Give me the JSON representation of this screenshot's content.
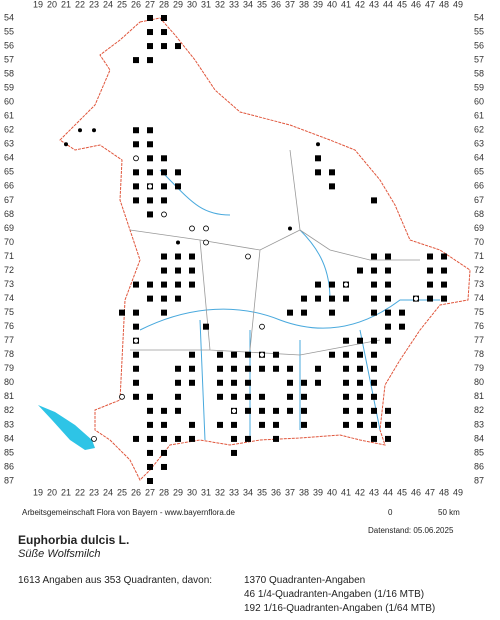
{
  "grid": {
    "columns": [
      19,
      20,
      21,
      22,
      23,
      24,
      25,
      26,
      27,
      28,
      29,
      30,
      31,
      32,
      33,
      34,
      35,
      36,
      37,
      38,
      39,
      40,
      41,
      42,
      43,
      44,
      45,
      46,
      47,
      48,
      49
    ],
    "rows": [
      54,
      55,
      56,
      57,
      58,
      59,
      60,
      61,
      62,
      63,
      64,
      65,
      66,
      67,
      68,
      69,
      70,
      71,
      72,
      73,
      74,
      75,
      76,
      77,
      78,
      79,
      80,
      81,
      82,
      83,
      84,
      85,
      86,
      87
    ]
  },
  "records": {
    "squares": [
      [
        27,
        54
      ],
      [
        28,
        54
      ],
      [
        27,
        55
      ],
      [
        28,
        55
      ],
      [
        27,
        56
      ],
      [
        28,
        56
      ],
      [
        29,
        56
      ],
      [
        26,
        57
      ],
      [
        27,
        57
      ],
      [
        26,
        62
      ],
      [
        27,
        62
      ],
      [
        26,
        63
      ],
      [
        27,
        63
      ],
      [
        27,
        64
      ],
      [
        28,
        64
      ],
      [
        39,
        64
      ],
      [
        26,
        65
      ],
      [
        27,
        65
      ],
      [
        28,
        65
      ],
      [
        29,
        65
      ],
      [
        39,
        65
      ],
      [
        40,
        65
      ],
      [
        26,
        66
      ],
      [
        27,
        66
      ],
      [
        28,
        66
      ],
      [
        29,
        66
      ],
      [
        40,
        66
      ],
      [
        26,
        67
      ],
      [
        27,
        67
      ],
      [
        28,
        67
      ],
      [
        43,
        67
      ],
      [
        27,
        68
      ],
      [
        28,
        71
      ],
      [
        29,
        71
      ],
      [
        30,
        71
      ],
      [
        43,
        71
      ],
      [
        44,
        71
      ],
      [
        47,
        71
      ],
      [
        48,
        71
      ],
      [
        28,
        72
      ],
      [
        29,
        72
      ],
      [
        30,
        72
      ],
      [
        42,
        72
      ],
      [
        43,
        72
      ],
      [
        44,
        72
      ],
      [
        47,
        72
      ],
      [
        48,
        72
      ],
      [
        26,
        73
      ],
      [
        27,
        73
      ],
      [
        28,
        73
      ],
      [
        29,
        73
      ],
      [
        30,
        73
      ],
      [
        39,
        73
      ],
      [
        40,
        73
      ],
      [
        41,
        73
      ],
      [
        43,
        73
      ],
      [
        44,
        73
      ],
      [
        47,
        73
      ],
      [
        48,
        73
      ],
      [
        27,
        74
      ],
      [
        28,
        74
      ],
      [
        29,
        74
      ],
      [
        38,
        74
      ],
      [
        39,
        74
      ],
      [
        40,
        74
      ],
      [
        41,
        74
      ],
      [
        43,
        74
      ],
      [
        44,
        74
      ],
      [
        46,
        74
      ],
      [
        47,
        74
      ],
      [
        48,
        74
      ],
      [
        25,
        75
      ],
      [
        26,
        75
      ],
      [
        28,
        75
      ],
      [
        37,
        75
      ],
      [
        38,
        75
      ],
      [
        40,
        75
      ],
      [
        43,
        75
      ],
      [
        44,
        75
      ],
      [
        45,
        75
      ],
      [
        26,
        76
      ],
      [
        31,
        76
      ],
      [
        44,
        76
      ],
      [
        45,
        76
      ],
      [
        26,
        77
      ],
      [
        41,
        77
      ],
      [
        42,
        77
      ],
      [
        43,
        77
      ],
      [
        44,
        77
      ],
      [
        26,
        78
      ],
      [
        30,
        78
      ],
      [
        32,
        78
      ],
      [
        33,
        78
      ],
      [
        34,
        78
      ],
      [
        35,
        78
      ],
      [
        36,
        78
      ],
      [
        40,
        78
      ],
      [
        41,
        78
      ],
      [
        42,
        78
      ],
      [
        43,
        78
      ],
      [
        26,
        79
      ],
      [
        29,
        79
      ],
      [
        30,
        79
      ],
      [
        32,
        79
      ],
      [
        33,
        79
      ],
      [
        34,
        79
      ],
      [
        35,
        79
      ],
      [
        36,
        79
      ],
      [
        37,
        79
      ],
      [
        39,
        79
      ],
      [
        41,
        79
      ],
      [
        42,
        79
      ],
      [
        43,
        79
      ],
      [
        26,
        80
      ],
      [
        29,
        80
      ],
      [
        30,
        80
      ],
      [
        32,
        80
      ],
      [
        33,
        80
      ],
      [
        34,
        80
      ],
      [
        37,
        80
      ],
      [
        38,
        80
      ],
      [
        39,
        80
      ],
      [
        41,
        80
      ],
      [
        42,
        80
      ],
      [
        43,
        80
      ],
      [
        26,
        81
      ],
      [
        27,
        81
      ],
      [
        29,
        81
      ],
      [
        32,
        81
      ],
      [
        33,
        81
      ],
      [
        34,
        81
      ],
      [
        35,
        81
      ],
      [
        37,
        81
      ],
      [
        38,
        81
      ],
      [
        41,
        81
      ],
      [
        42,
        81
      ],
      [
        43,
        81
      ],
      [
        27,
        82
      ],
      [
        28,
        82
      ],
      [
        29,
        82
      ],
      [
        33,
        82
      ],
      [
        34,
        82
      ],
      [
        35,
        82
      ],
      [
        36,
        82
      ],
      [
        37,
        82
      ],
      [
        38,
        82
      ],
      [
        41,
        82
      ],
      [
        42,
        82
      ],
      [
        43,
        82
      ],
      [
        44,
        82
      ],
      [
        27,
        83
      ],
      [
        28,
        83
      ],
      [
        30,
        83
      ],
      [
        32,
        83
      ],
      [
        33,
        83
      ],
      [
        35,
        83
      ],
      [
        36,
        83
      ],
      [
        38,
        83
      ],
      [
        41,
        83
      ],
      [
        42,
        83
      ],
      [
        43,
        83
      ],
      [
        44,
        83
      ],
      [
        26,
        84
      ],
      [
        27,
        84
      ],
      [
        28,
        84
      ],
      [
        29,
        84
      ],
      [
        30,
        84
      ],
      [
        33,
        84
      ],
      [
        34,
        84
      ],
      [
        36,
        84
      ],
      [
        43,
        84
      ],
      [
        44,
        84
      ],
      [
        27,
        85
      ],
      [
        28,
        85
      ],
      [
        33,
        85
      ],
      [
        27,
        86
      ],
      [
        28,
        86
      ],
      [
        27,
        87
      ]
    ],
    "circles": [
      [
        26,
        64
      ],
      [
        27,
        66
      ],
      [
        28,
        68
      ],
      [
        30,
        69
      ],
      [
        31,
        69
      ],
      [
        31,
        70
      ],
      [
        34,
        71
      ],
      [
        41,
        73
      ],
      [
        46,
        74
      ],
      [
        26,
        77
      ],
      [
        35,
        76
      ],
      [
        35,
        78
      ],
      [
        23,
        84
      ],
      [
        25,
        81
      ],
      [
        33,
        82
      ]
    ],
    "dots": [
      [
        21,
        63
      ],
      [
        22,
        62
      ],
      [
        23,
        62
      ],
      [
        29,
        70
      ],
      [
        39,
        63
      ],
      [
        37,
        69
      ],
      [
        42,
        72
      ]
    ]
  },
  "footer": {
    "credit": "Arbeitsgemeinschaft Flora von Bayern - www.bayernflora.de",
    "scale_start": "0",
    "scale_end": "50 km",
    "date": "Datenstand: 05.06.2025"
  },
  "species": {
    "name": "Euphorbia dulcis L.",
    "common_name": "Süße Wolfsmilch"
  },
  "summary": {
    "total": "1613 Angaben aus 353 Quadranten, davon:",
    "lines": [
      "1370 Quadranten-Angaben",
      "46 1/4-Quadranten-Angaben (1/16 MTB)",
      "192 1/16-Quadranten-Angaben (1/64 MTB)"
    ]
  }
}
